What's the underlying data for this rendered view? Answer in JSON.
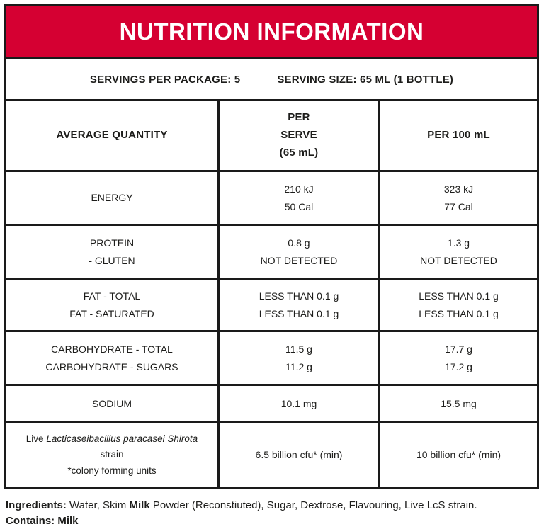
{
  "colors": {
    "banner_red": "#d50032",
    "banner_text": "#ffffff",
    "border_black": "#1a1a1a",
    "text": "#1d1d1b"
  },
  "header": {
    "title": "NUTRITION INFORMATION"
  },
  "servings_row": {
    "per_package": "SERVINGS PER PACKAGE: 5",
    "serving_size": "SERVING SIZE: 65 ML (1 BOTTLE)"
  },
  "table": {
    "columns": {
      "quantity": "AVERAGE QUANTITY",
      "per_serve_lines": [
        "PER",
        "SERVE",
        "(65 mL)"
      ],
      "per_100": "PER 100 mL"
    },
    "rows": [
      {
        "name_lines": [
          "ENERGY"
        ],
        "per_serve_lines": [
          "210 kJ",
          "50 Cal"
        ],
        "per_100_lines": [
          "323 kJ",
          "77 Cal"
        ]
      },
      {
        "name_lines": [
          "PROTEIN",
          "- GLUTEN"
        ],
        "per_serve_lines": [
          "0.8 g",
          "NOT DETECTED"
        ],
        "per_100_lines": [
          "1.3 g",
          "NOT DETECTED"
        ]
      },
      {
        "name_lines": [
          "FAT - TOTAL",
          "FAT - SATURATED"
        ],
        "per_serve_lines": [
          "LESS THAN 0.1 g",
          "LESS THAN 0.1 g"
        ],
        "per_100_lines": [
          "LESS THAN 0.1 g",
          "LESS THAN 0.1 g"
        ]
      },
      {
        "name_lines": [
          "CARBOHYDRATE - TOTAL",
          "CARBOHYDRATE - SUGARS"
        ],
        "per_serve_lines": [
          "11.5 g",
          "11.2 g"
        ],
        "per_100_lines": [
          "17.7 g",
          "17.2 g"
        ]
      },
      {
        "name_lines": [
          "SODIUM"
        ],
        "per_serve_lines": [
          "10.1 mg"
        ],
        "per_100_lines": [
          "15.5 mg"
        ]
      }
    ],
    "probiotic_row": {
      "live_prefix": "Live",
      "species_italic": "Lacticaseibacillus paracasei Shirota",
      "line2": "strain",
      "line3": "*colony forming units",
      "per_serve": "6.5 billion cfu* (min)",
      "per_100": "10 billion cfu* (min)"
    }
  },
  "footer": {
    "ingredients_label": "Ingredients:",
    "ingredients_part1": "Water, Skim",
    "ingredients_milk": "Milk",
    "ingredients_part2": "Powder (Reconstiuted), Sugar, Dextrose, Flavouring, Live LcS strain.",
    "contains": "Contains: Milk"
  }
}
